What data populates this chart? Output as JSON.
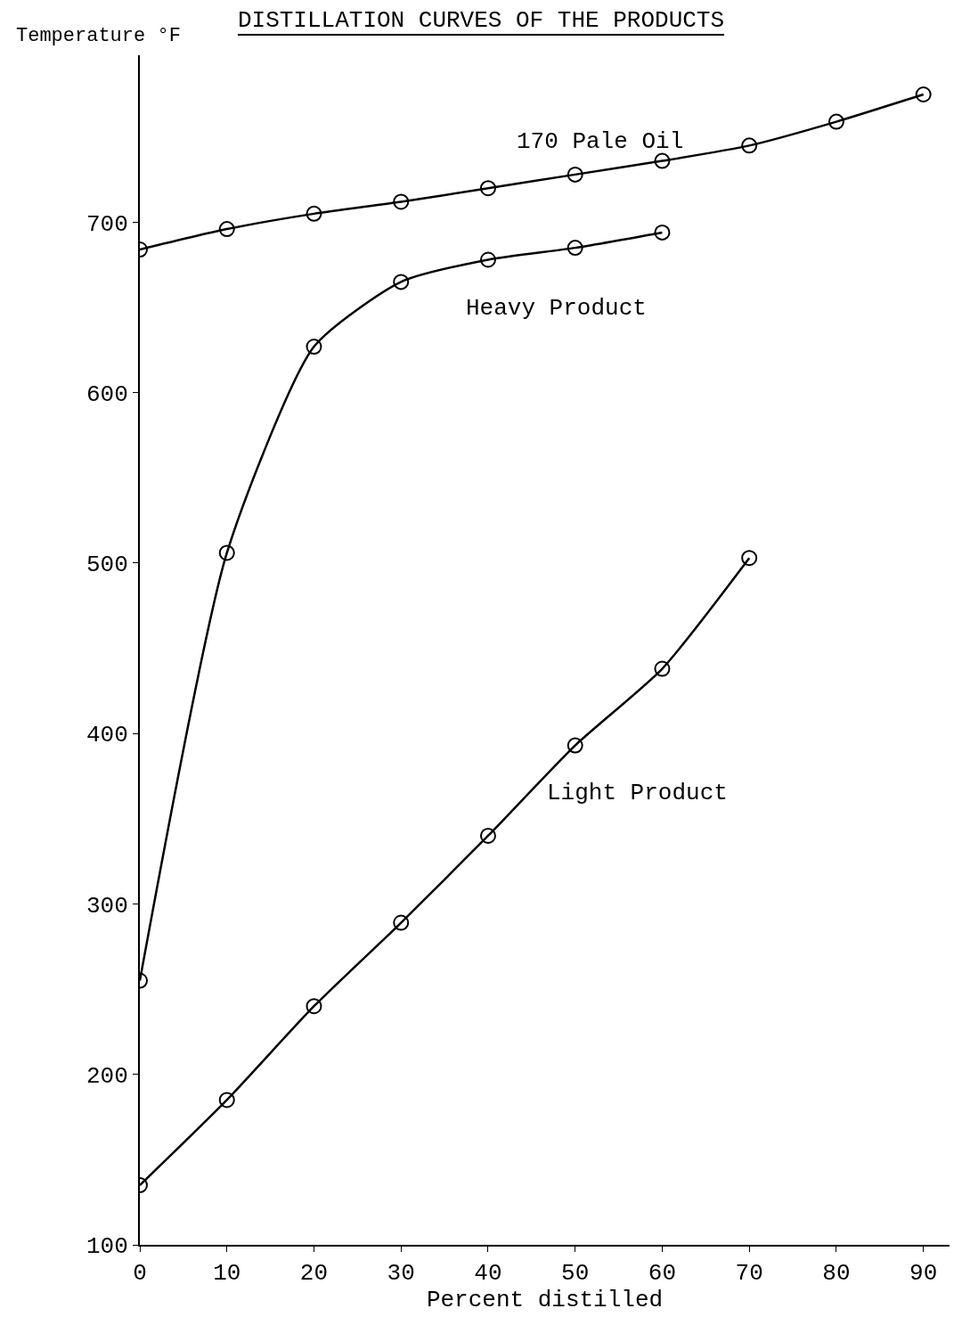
{
  "chart_data": {
    "type": "line",
    "title": "DISTILLATION CURVES OF THE PRODUCTS",
    "xlabel": "Percent distilled",
    "ylabel": "Temperature °F",
    "x": [
      0,
      10,
      20,
      30,
      40,
      50,
      60,
      70,
      80,
      90
    ],
    "series": [
      {
        "name": "170 Pale Oil",
        "color": "#000000",
        "values": [
          684,
          696,
          705,
          712,
          720,
          728,
          736,
          745,
          759,
          775
        ]
      },
      {
        "name": "Heavy Product",
        "color": "#000000",
        "values": [
          255,
          506,
          627,
          665,
          678,
          685,
          694,
          null,
          null,
          null
        ]
      },
      {
        "name": "Light Product",
        "color": "#000000",
        "values": [
          135,
          185,
          240,
          289,
          340,
          393,
          438,
          503,
          null,
          null
        ]
      }
    ],
    "xlim": [
      0,
      93
    ],
    "xticks": [
      0,
      10,
      20,
      30,
      40,
      50,
      60,
      70,
      80,
      90
    ],
    "ylim": [
      100,
      798
    ],
    "yticks": [
      100,
      200,
      300,
      400,
      500,
      600,
      700
    ],
    "grid": false,
    "legend": false,
    "marker": "circle",
    "line_style": "solid"
  }
}
